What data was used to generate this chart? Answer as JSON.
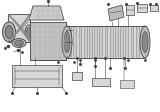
{
  "bg_color": "#ffffff",
  "fig_width": 1.6,
  "fig_height": 1.12,
  "dpi": 100,
  "gray1": "#444444",
  "gray2": "#888888",
  "gray3": "#bbbbbb",
  "gray4": "#d8d8d8",
  "gray5": "#eeeeee"
}
